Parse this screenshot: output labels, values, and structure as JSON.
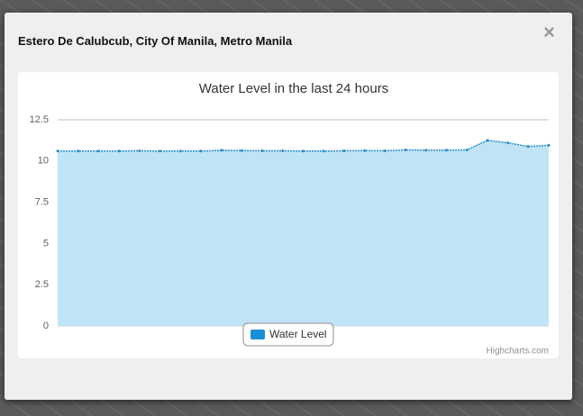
{
  "modal": {
    "title": "Estero De Calubcub, City Of Manila, Metro Manila",
    "close": "×"
  },
  "chart_data": {
    "type": "area",
    "title": "Water Level in the last 24 hours",
    "credits": "Highcharts.com",
    "series": [
      {
        "name": "Water Level",
        "color": "#2b8ccc",
        "fill": "#bfe4f6",
        "legend_color": "#1a8fd8",
        "values": [
          10.6,
          10.6,
          10.6,
          10.6,
          10.62,
          10.6,
          10.6,
          10.6,
          10.65,
          10.63,
          10.62,
          10.62,
          10.6,
          10.6,
          10.62,
          10.63,
          10.62,
          10.67,
          10.66,
          10.66,
          10.67,
          11.25,
          11.1,
          10.88,
          10.95
        ]
      }
    ],
    "ylim": [
      0,
      12.5
    ],
    "yticks": [
      0,
      2.5,
      5,
      7.5,
      10,
      12.5
    ],
    "grid": true
  }
}
